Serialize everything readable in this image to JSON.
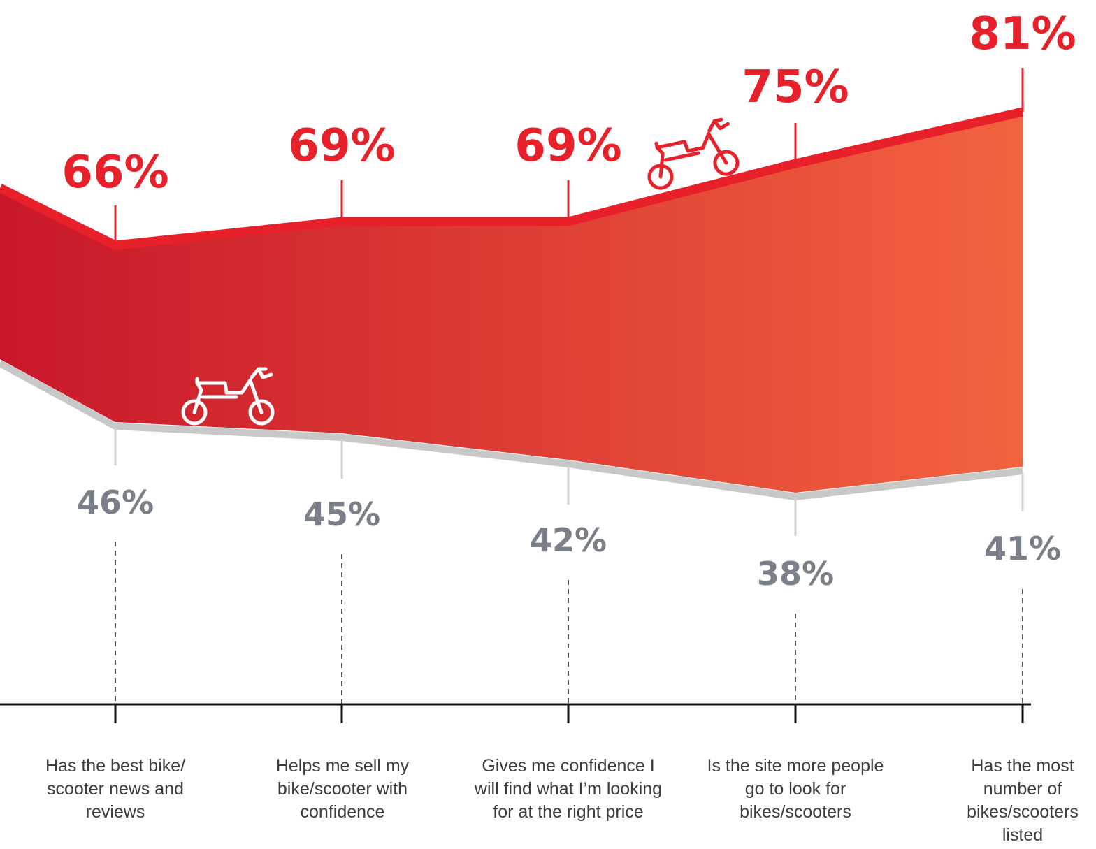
{
  "chart_data": {
    "type": "area",
    "categories": [
      "Has the best bike/ scooter news and reviews",
      "Helps me sell my bike/scooter with confidence",
      "Gives me confidence I will find what I’m looking for at the right price",
      "Is the site more people go to look for bikes/scooters",
      "Has the most number of bikes/scooters listed"
    ],
    "series": [
      {
        "values": [
          66,
          69,
          69,
          75,
          81
        ],
        "labels": [
          "66%",
          "69%",
          "69%",
          "75%",
          "81%"
        ],
        "color": "#e8202a"
      },
      {
        "values": [
          46,
          45,
          42,
          38,
          41
        ],
        "labels": [
          "46%",
          "45%",
          "42%",
          "38%",
          "41%"
        ],
        "color": "#c8c8c8"
      }
    ],
    "fill_gradient": [
      "#c8172a",
      "#f2633f"
    ],
    "label_colors": {
      "top": "#e8202a",
      "bottom": "#7a7f89"
    },
    "icons": [
      "motorcycle-icon",
      "motorcycle-icon"
    ]
  }
}
